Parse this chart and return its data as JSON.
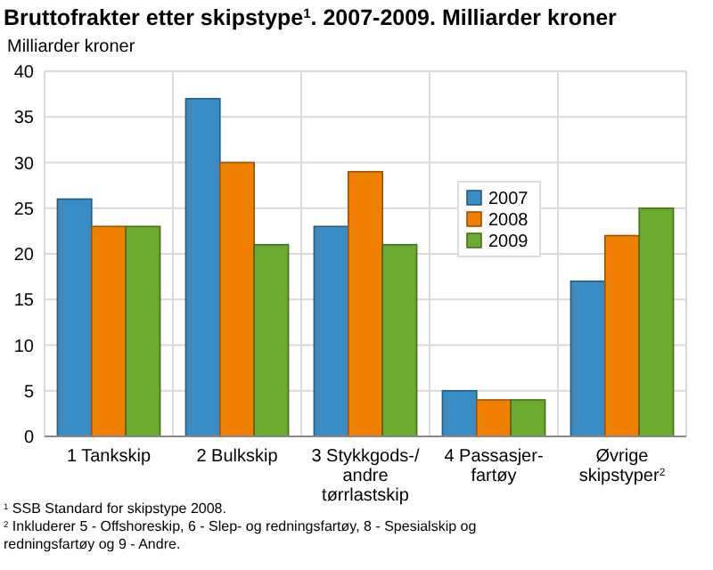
{
  "chart_data": {
    "type": "bar",
    "title": "Bruttofrakter etter skipstype$^{1}$. 2007-2009. Milliarder kroner",
    "ylabel": "Milliarder kroner",
    "categories": [
      "1 Tankskip",
      "2 Bulkskip",
      "3 Stykkgods-/\nandre\ntørrlastskip",
      "4 Passasjer-\nfartøy",
      "Øvrige\nskipstyper$^{2}$"
    ],
    "series": [
      {
        "name": "2007",
        "color": "#3a8cc4",
        "values": [
          26,
          37,
          23,
          5,
          17
        ]
      },
      {
        "name": "2008",
        "color": "#f07f00",
        "values": [
          23,
          30,
          29,
          4,
          22
        ]
      },
      {
        "name": "2009",
        "color": "#6aaa2e",
        "values": [
          23,
          21,
          21,
          4,
          25
        ]
      }
    ],
    "ylim": [
      0,
      40
    ],
    "yticks": [
      0,
      5,
      10,
      15,
      20,
      25,
      30,
      35,
      40
    ],
    "grid": true,
    "legend": "right",
    "annotations": [
      "$^{1}$ SSB Standard for skipstype 2008.",
      "$^{2}$ Inkluderer 5 - Offshoreskip, 6 - Slep- og redningsfartøy, 8 - Spesialskip og redningsfartøy og 9 - Andre."
    ]
  }
}
